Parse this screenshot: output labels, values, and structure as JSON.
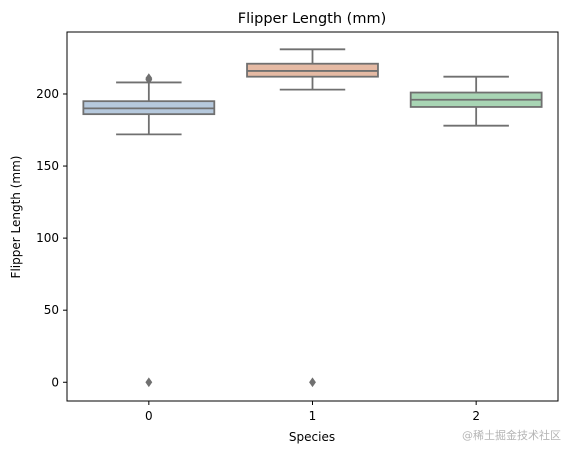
{
  "chart_data": {
    "type": "box",
    "title": "Flipper Length (mm)",
    "xlabel": "Species",
    "ylabel": "Flipper Length (mm)",
    "categories": [
      "0",
      "1",
      "2"
    ],
    "ylim": [
      -13,
      243
    ],
    "yticks": [
      0,
      50,
      100,
      150,
      200
    ],
    "grid": false,
    "boxes": [
      {
        "category": "0",
        "color": "#b6c9dd",
        "whisker_low": 172,
        "q1": 186,
        "median": 190,
        "q3": 195,
        "whisker_high": 208,
        "outliers": [
          210,
          211,
          0
        ]
      },
      {
        "category": "1",
        "color": "#e5baa4",
        "whisker_low": 203,
        "q1": 212,
        "median": 216,
        "q3": 221,
        "whisker_high": 231,
        "outliers": [
          0
        ]
      },
      {
        "category": "2",
        "color": "#a8d5b4",
        "whisker_low": 178,
        "q1": 191,
        "median": 196,
        "q3": 201,
        "whisker_high": 212,
        "outliers": []
      }
    ]
  },
  "watermark": "@稀土掘金技术社区"
}
